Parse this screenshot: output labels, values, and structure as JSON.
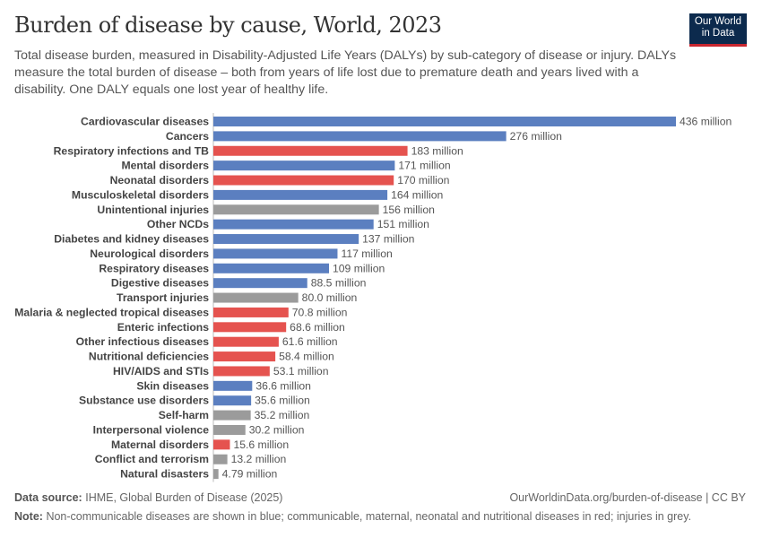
{
  "title": "Burden of disease by cause, World, 2023",
  "subtitle": "Total disease burden, measured in Disability-Adjusted Life Years (DALYs) by sub-category of disease or injury. DALYs measure the total burden of disease – both from years of life lost due to premature death and years lived with a disability. One DALY equals one lost year of healthy life.",
  "logo": {
    "line1": "Our World",
    "line2": "in Data"
  },
  "footer": {
    "source_label": "Data source:",
    "source": "IHME, Global Burden of Disease (2025)",
    "url": "OurWorldinData.org/burden-of-disease | CC BY",
    "note_label": "Note:",
    "note": "Non-communicable diseases are shown in blue; communicable, maternal, neonatal and nutritional diseases in red; injuries in grey."
  },
  "colors": {
    "ncd": "#5b7fc0",
    "communicable": "#e5534f",
    "injuries": "#9b9b9b"
  },
  "chart_data": {
    "type": "bar",
    "orientation": "horizontal",
    "unit": "million",
    "xlim": [
      0,
      436
    ],
    "grid": false,
    "categories": [
      "Cardiovascular diseases",
      "Cancers",
      "Respiratory infections and TB",
      "Mental disorders",
      "Neonatal disorders",
      "Musculoskeletal disorders",
      "Unintentional injuries",
      "Other NCDs",
      "Diabetes and kidney diseases",
      "Neurological disorders",
      "Respiratory diseases",
      "Digestive diseases",
      "Transport injuries",
      "Malaria & neglected tropical diseases",
      "Enteric infections",
      "Other infectious diseases",
      "Nutritional deficiencies",
      "HIV/AIDS and STIs",
      "Skin diseases",
      "Substance use disorders",
      "Self-harm",
      "Interpersonal violence",
      "Maternal disorders",
      "Conflict and terrorism",
      "Natural disasters"
    ],
    "values": [
      436,
      276,
      183,
      171,
      170,
      164,
      156,
      151,
      137,
      117,
      109,
      88.5,
      80.0,
      70.8,
      68.6,
      61.6,
      58.4,
      53.1,
      36.6,
      35.6,
      35.2,
      30.2,
      15.6,
      13.2,
      4.79
    ],
    "labels": [
      "436 million",
      "276 million",
      "183 million",
      "171 million",
      "170 million",
      "164 million",
      "156 million",
      "151 million",
      "137 million",
      "117 million",
      "109 million",
      "88.5 million",
      "80.0 million",
      "70.8 million",
      "68.6 million",
      "61.6 million",
      "58.4 million",
      "53.1 million",
      "36.6 million",
      "35.6 million",
      "35.2 million",
      "30.2 million",
      "15.6 million",
      "13.2 million",
      "4.79 million"
    ],
    "groups": [
      "ncd",
      "ncd",
      "communicable",
      "ncd",
      "communicable",
      "ncd",
      "injuries",
      "ncd",
      "ncd",
      "ncd",
      "ncd",
      "ncd",
      "injuries",
      "communicable",
      "communicable",
      "communicable",
      "communicable",
      "communicable",
      "ncd",
      "ncd",
      "injuries",
      "injuries",
      "communicable",
      "injuries",
      "injuries"
    ]
  }
}
